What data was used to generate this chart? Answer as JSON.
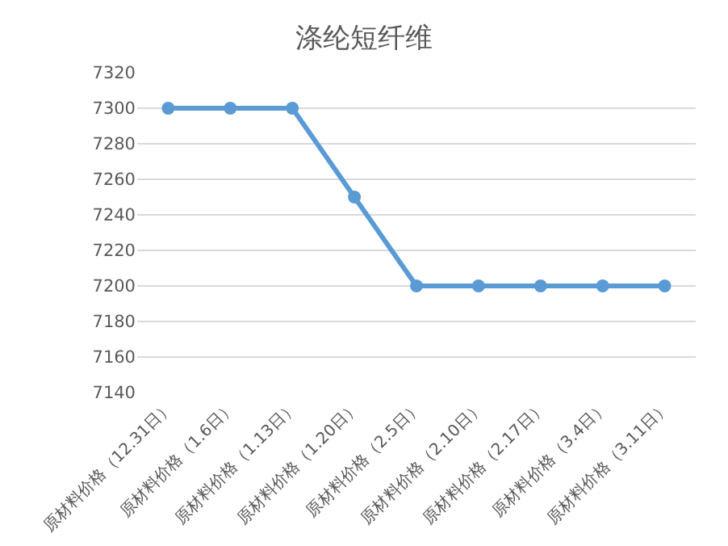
{
  "chart_data": {
    "type": "line",
    "title": "涤纶短纤维",
    "categories": [
      "原材料价格（12.31日）",
      "原材料价格（1.6日）",
      "原材料价格（1.13日）",
      "原材料价格（1.20日）",
      "原材料价格（2.5日）",
      "原材料价格（2.10日）",
      "原材料价格（2.17日）",
      "原材料价格（3.4日）",
      "原材料价格（3.11日）"
    ],
    "series": [
      {
        "color": "#5b9bd5",
        "values": [
          7300,
          7300,
          7300,
          7250,
          7200,
          7200,
          7200,
          7200,
          7200
        ]
      }
    ],
    "ylim": [
      7140,
      7320
    ],
    "yticks": [
      7140,
      7160,
      7180,
      7200,
      7220,
      7240,
      7260,
      7280,
      7300,
      7320
    ],
    "grid": "y",
    "marker": "circle",
    "line_style": "solid"
  }
}
